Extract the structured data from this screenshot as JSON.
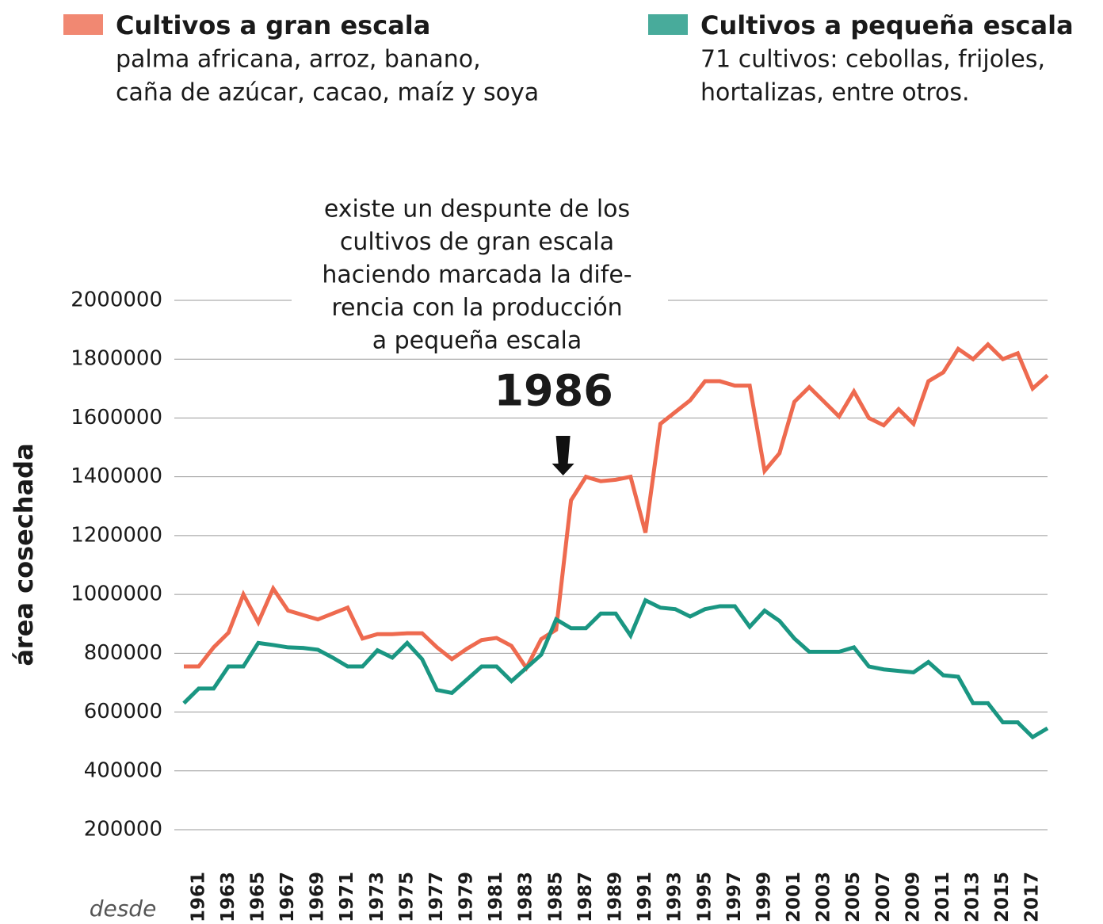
{
  "chart_data": {
    "type": "line",
    "ylabel": "área cosechada",
    "xlabel": "desde",
    "x": [
      1960,
      1961,
      1962,
      1963,
      1964,
      1965,
      1966,
      1967,
      1968,
      1969,
      1970,
      1971,
      1972,
      1973,
      1974,
      1975,
      1976,
      1977,
      1978,
      1979,
      1980,
      1981,
      1982,
      1983,
      1984,
      1985,
      1986,
      1987,
      1988,
      1989,
      1990,
      1991,
      1992,
      1993,
      1994,
      1995,
      1996,
      1997,
      1998,
      1999,
      2000,
      2001,
      2002,
      2003,
      2004,
      2005,
      2006,
      2007,
      2008,
      2009,
      2010,
      2011,
      2012,
      2013,
      2014,
      2015,
      2016,
      2017,
      2018
    ],
    "series": [
      {
        "name": "Cultivos a gran escala",
        "color": "#ee6a4f",
        "legend_note": [
          "palma africana, arroz,  banano,",
          "caña de azúcar, cacao, maíz y soya"
        ],
        "values": [
          755000,
          755000,
          820000,
          870000,
          1000000,
          905000,
          1020000,
          945000,
          930000,
          915000,
          935000,
          955000,
          850000,
          865000,
          865000,
          868000,
          868000,
          820000,
          780000,
          815000,
          845000,
          852000,
          825000,
          750000,
          848000,
          880000,
          1320000,
          1400000,
          1385000,
          1390000,
          1400000,
          1210000,
          1580000,
          1620000,
          1660000,
          1725000,
          1725000,
          1710000,
          1710000,
          1420000,
          1480000,
          1655000,
          1705000,
          1655000,
          1605000,
          1690000,
          1600000,
          1575000,
          1630000,
          1580000,
          1725000,
          1755000,
          1835000,
          1800000,
          1850000,
          1800000,
          1820000,
          1700000,
          1745000
        ]
      },
      {
        "name": "Cultivos a pequeña escala",
        "color": "#1a9682",
        "legend_note": [
          "71 cultivos: cebollas, frijoles,",
          "hortalizas, entre otros."
        ],
        "values": [
          630000,
          680000,
          680000,
          755000,
          755000,
          835000,
          828000,
          820000,
          818000,
          812000,
          785000,
          755000,
          755000,
          810000,
          785000,
          835000,
          780000,
          675000,
          665000,
          710000,
          755000,
          755000,
          705000,
          750000,
          795000,
          915000,
          885000,
          885000,
          935000,
          935000,
          860000,
          980000,
          955000,
          950000,
          925000,
          950000,
          960000,
          960000,
          890000,
          945000,
          910000,
          850000,
          805000,
          805000,
          805000,
          820000,
          755000,
          745000,
          740000,
          735000,
          770000,
          725000,
          720000,
          630000,
          630000,
          565000,
          565000,
          515000,
          545000
        ]
      }
    ],
    "annotation": {
      "lines": [
        "existe un despunte de los",
        "cultivos de gran escala",
        "haciendo marcada la dife-",
        "rencia con la producción",
        "a pequeña escala"
      ],
      "x": 1986
    },
    "xlim": [
      1960,
      2018
    ],
    "xticks": [
      1961,
      1963,
      1965,
      1967,
      1969,
      1971,
      1973,
      1975,
      1977,
      1979,
      1981,
      1983,
      1985,
      1987,
      1989,
      1991,
      1993,
      1995,
      1997,
      1999,
      2001,
      2003,
      2005,
      2007,
      2009,
      2011,
      2013,
      2015,
      2017
    ],
    "ylim": [
      200000,
      2000000
    ],
    "yticks": [
      200000,
      400000,
      600000,
      800000,
      1000000,
      1200000,
      1400000,
      1600000,
      1800000,
      2000000
    ],
    "grid": true
  }
}
